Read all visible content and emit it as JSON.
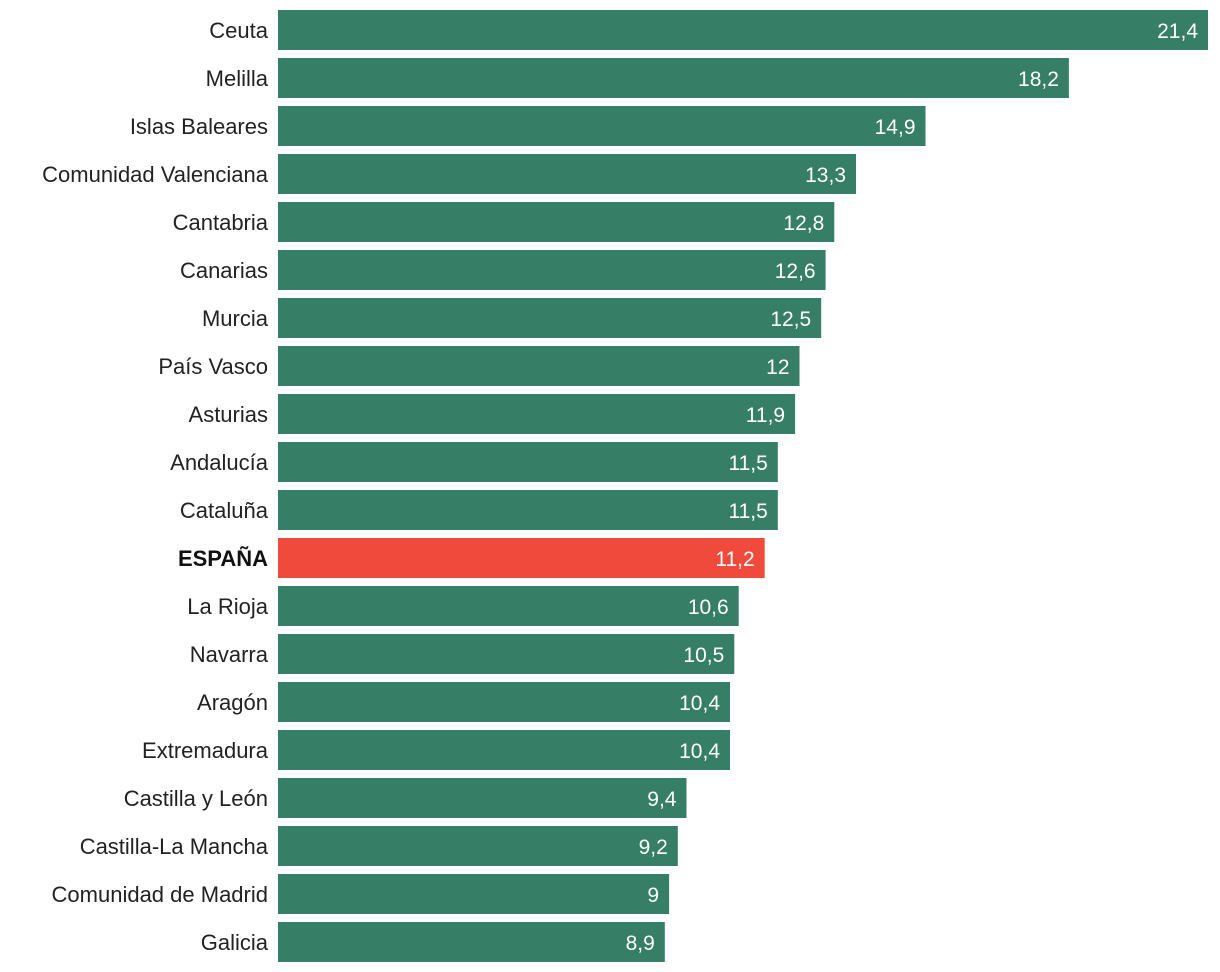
{
  "chart_data": {
    "type": "bar",
    "orientation": "horizontal",
    "categories": [
      "Ceuta",
      "Melilla",
      "Islas Baleares",
      "Comunidad Valenciana",
      "Cantabria",
      "Canarias",
      "Murcia",
      "País Vasco",
      "Asturias",
      "Andalucía",
      "Cataluña",
      "ESPAÑA",
      "La Rioja",
      "Navarra",
      "Aragón",
      "Extremadura",
      "Castilla y León",
      "Castilla-La Mancha",
      "Comunidad de Madrid",
      "Galicia"
    ],
    "values": [
      21.4,
      18.2,
      14.9,
      13.3,
      12.8,
      12.6,
      12.5,
      12,
      11.9,
      11.5,
      11.5,
      11.2,
      10.6,
      10.5,
      10.4,
      10.4,
      9.4,
      9.2,
      9,
      8.9
    ],
    "value_labels": [
      "21,4",
      "18,2",
      "14,9",
      "13,3",
      "12,8",
      "12,6",
      "12,5",
      "12",
      "11,9",
      "11,5",
      "11,5",
      "11,2",
      "10,6",
      "10,5",
      "10,4",
      "10,4",
      "9,4",
      "9,2",
      "9",
      "8,9"
    ],
    "highlight_category": "ESPAÑA",
    "colors": {
      "bar": "#367f66",
      "highlight": "#ef4a3c",
      "value_text": "#ffffff",
      "category_text": "#222222"
    },
    "xlim": [
      0,
      21.4
    ],
    "grid": false,
    "legend": "none",
    "title": "",
    "xlabel": "",
    "ylabel": ""
  }
}
